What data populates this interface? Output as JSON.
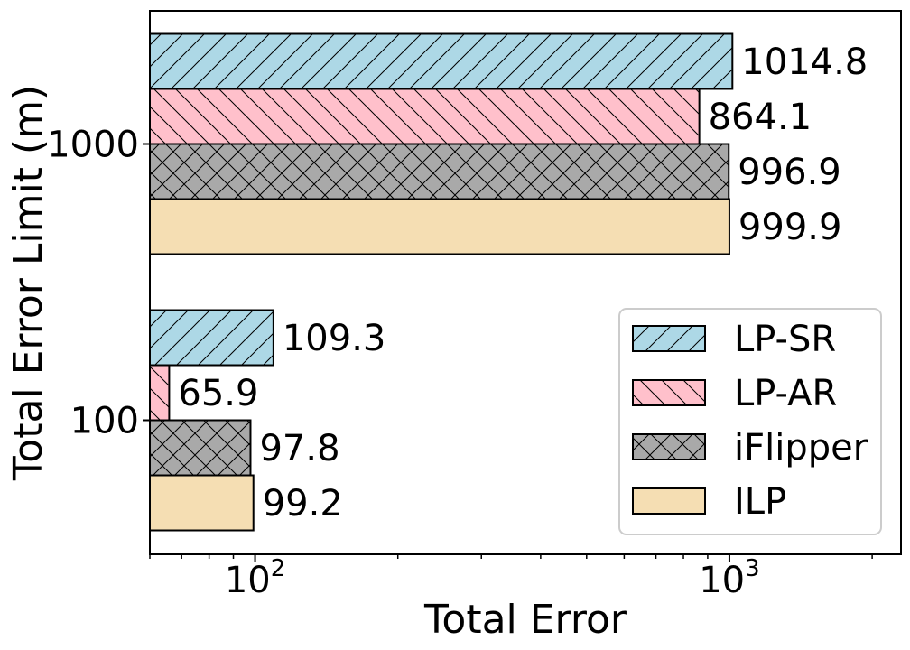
{
  "chart_data": {
    "type": "bar",
    "orientation": "horizontal",
    "xscale": "log",
    "xlabel": "Total Error",
    "ylabel": "Total Error Limit (m)",
    "xlim": [
      60,
      2300
    ],
    "x_ticks": [
      {
        "value": 100,
        "base": "10",
        "exp": "2"
      },
      {
        "value": 1000,
        "base": "10",
        "exp": "3"
      }
    ],
    "categories": [
      "1000",
      "100"
    ],
    "series": [
      {
        "name": "LP-SR",
        "values": [
          1014.8,
          109.3
        ],
        "labels": [
          "1014.8",
          "109.3"
        ],
        "color": "#add8e6",
        "hatch": "diag-up"
      },
      {
        "name": "LP-AR",
        "values": [
          864.1,
          65.9
        ],
        "labels": [
          "864.1",
          "65.9"
        ],
        "color": "#ffc0cb",
        "hatch": "diag-down"
      },
      {
        "name": "iFlipper",
        "values": [
          996.9,
          97.8
        ],
        "labels": [
          "996.9",
          "97.8"
        ],
        "color": "#a9a9a9",
        "hatch": "cross"
      },
      {
        "name": "ILP",
        "values": [
          999.9,
          99.2
        ],
        "labels": [
          "999.9",
          "99.2"
        ],
        "color": "#f5deb3",
        "hatch": "none"
      }
    ],
    "legend": {
      "position": "lower-right"
    },
    "grid": false
  }
}
